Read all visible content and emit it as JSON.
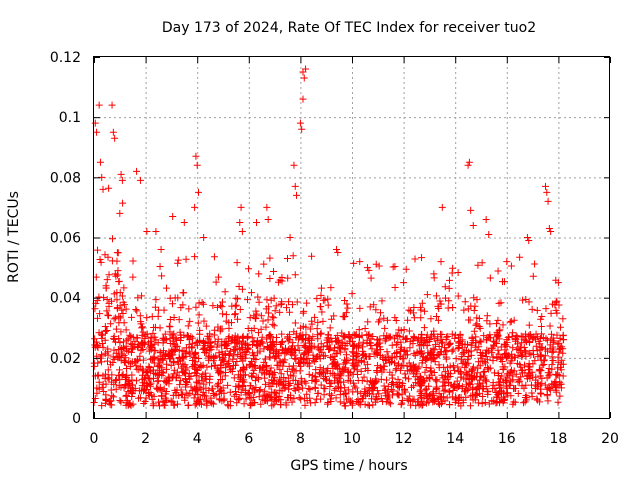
{
  "chart_data": {
    "type": "scatter",
    "title": "Day 173 of 2024, Rate Of TEC Index for receiver tuo2",
    "xlabel": "GPS time / hours",
    "ylabel": "ROTI / TECUs",
    "xlim": [
      0,
      20
    ],
    "ylim": [
      0,
      0.12
    ],
    "x_ticks": [
      "0",
      "2",
      "4",
      "6",
      "8",
      "10",
      "12",
      "14",
      "16",
      "18",
      "20"
    ],
    "y_ticks": [
      "0",
      "0.02",
      "0.04",
      "0.06",
      "0.08",
      "0.1",
      "0.12"
    ],
    "grid": true,
    "marker": "+",
    "color": "#ff0000",
    "data_extent_hours": [
      0,
      18.2
    ],
    "series": [
      {
        "name": "ROTI",
        "highlights": [
          {
            "x": 0.05,
            "y": 0.098
          },
          {
            "x": 0.1,
            "y": 0.095
          },
          {
            "x": 0.2,
            "y": 0.104
          },
          {
            "x": 0.25,
            "y": 0.085
          },
          {
            "x": 0.3,
            "y": 0.08
          },
          {
            "x": 0.35,
            "y": 0.076
          },
          {
            "x": 0.7,
            "y": 0.104
          },
          {
            "x": 0.75,
            "y": 0.095
          },
          {
            "x": 0.8,
            "y": 0.093
          },
          {
            "x": 1.05,
            "y": 0.081
          },
          {
            "x": 1.1,
            "y": 0.079
          },
          {
            "x": 1.0,
            "y": 0.068
          },
          {
            "x": 1.65,
            "y": 0.082
          },
          {
            "x": 1.8,
            "y": 0.079
          },
          {
            "x": 2.05,
            "y": 0.062
          },
          {
            "x": 2.4,
            "y": 0.062
          },
          {
            "x": 2.6,
            "y": 0.056
          },
          {
            "x": 3.05,
            "y": 0.067
          },
          {
            "x": 3.5,
            "y": 0.065
          },
          {
            "x": 3.9,
            "y": 0.07
          },
          {
            "x": 3.95,
            "y": 0.087
          },
          {
            "x": 4.0,
            "y": 0.084
          },
          {
            "x": 4.05,
            "y": 0.075
          },
          {
            "x": 4.25,
            "y": 0.06
          },
          {
            "x": 5.7,
            "y": 0.07
          },
          {
            "x": 5.65,
            "y": 0.065
          },
          {
            "x": 5.75,
            "y": 0.062
          },
          {
            "x": 6.3,
            "y": 0.065
          },
          {
            "x": 6.7,
            "y": 0.07
          },
          {
            "x": 6.75,
            "y": 0.066
          },
          {
            "x": 7.5,
            "y": 0.053
          },
          {
            "x": 7.6,
            "y": 0.06
          },
          {
            "x": 7.75,
            "y": 0.084
          },
          {
            "x": 7.8,
            "y": 0.077
          },
          {
            "x": 7.85,
            "y": 0.074
          },
          {
            "x": 8.0,
            "y": 0.098
          },
          {
            "x": 8.05,
            "y": 0.096
          },
          {
            "x": 8.1,
            "y": 0.115
          },
          {
            "x": 8.15,
            "y": 0.113
          },
          {
            "x": 8.2,
            "y": 0.116
          },
          {
            "x": 8.1,
            "y": 0.106
          },
          {
            "x": 9.4,
            "y": 0.056
          },
          {
            "x": 9.45,
            "y": 0.055
          },
          {
            "x": 10.3,
            "y": 0.052
          },
          {
            "x": 10.6,
            "y": 0.05
          },
          {
            "x": 12.0,
            "y": 0.045
          },
          {
            "x": 13.5,
            "y": 0.07
          },
          {
            "x": 13.45,
            "y": 0.052
          },
          {
            "x": 14.5,
            "y": 0.084
          },
          {
            "x": 14.55,
            "y": 0.085
          },
          {
            "x": 14.6,
            "y": 0.069
          },
          {
            "x": 14.7,
            "y": 0.064
          },
          {
            "x": 15.2,
            "y": 0.066
          },
          {
            "x": 15.3,
            "y": 0.061
          },
          {
            "x": 16.0,
            "y": 0.052
          },
          {
            "x": 16.8,
            "y": 0.06
          },
          {
            "x": 16.85,
            "y": 0.059
          },
          {
            "x": 17.5,
            "y": 0.077
          },
          {
            "x": 17.55,
            "y": 0.075
          },
          {
            "x": 17.6,
            "y": 0.072
          },
          {
            "x": 17.65,
            "y": 0.063
          },
          {
            "x": 17.7,
            "y": 0.062
          },
          {
            "x": 18.0,
            "y": 0.045
          }
        ]
      }
    ]
  }
}
